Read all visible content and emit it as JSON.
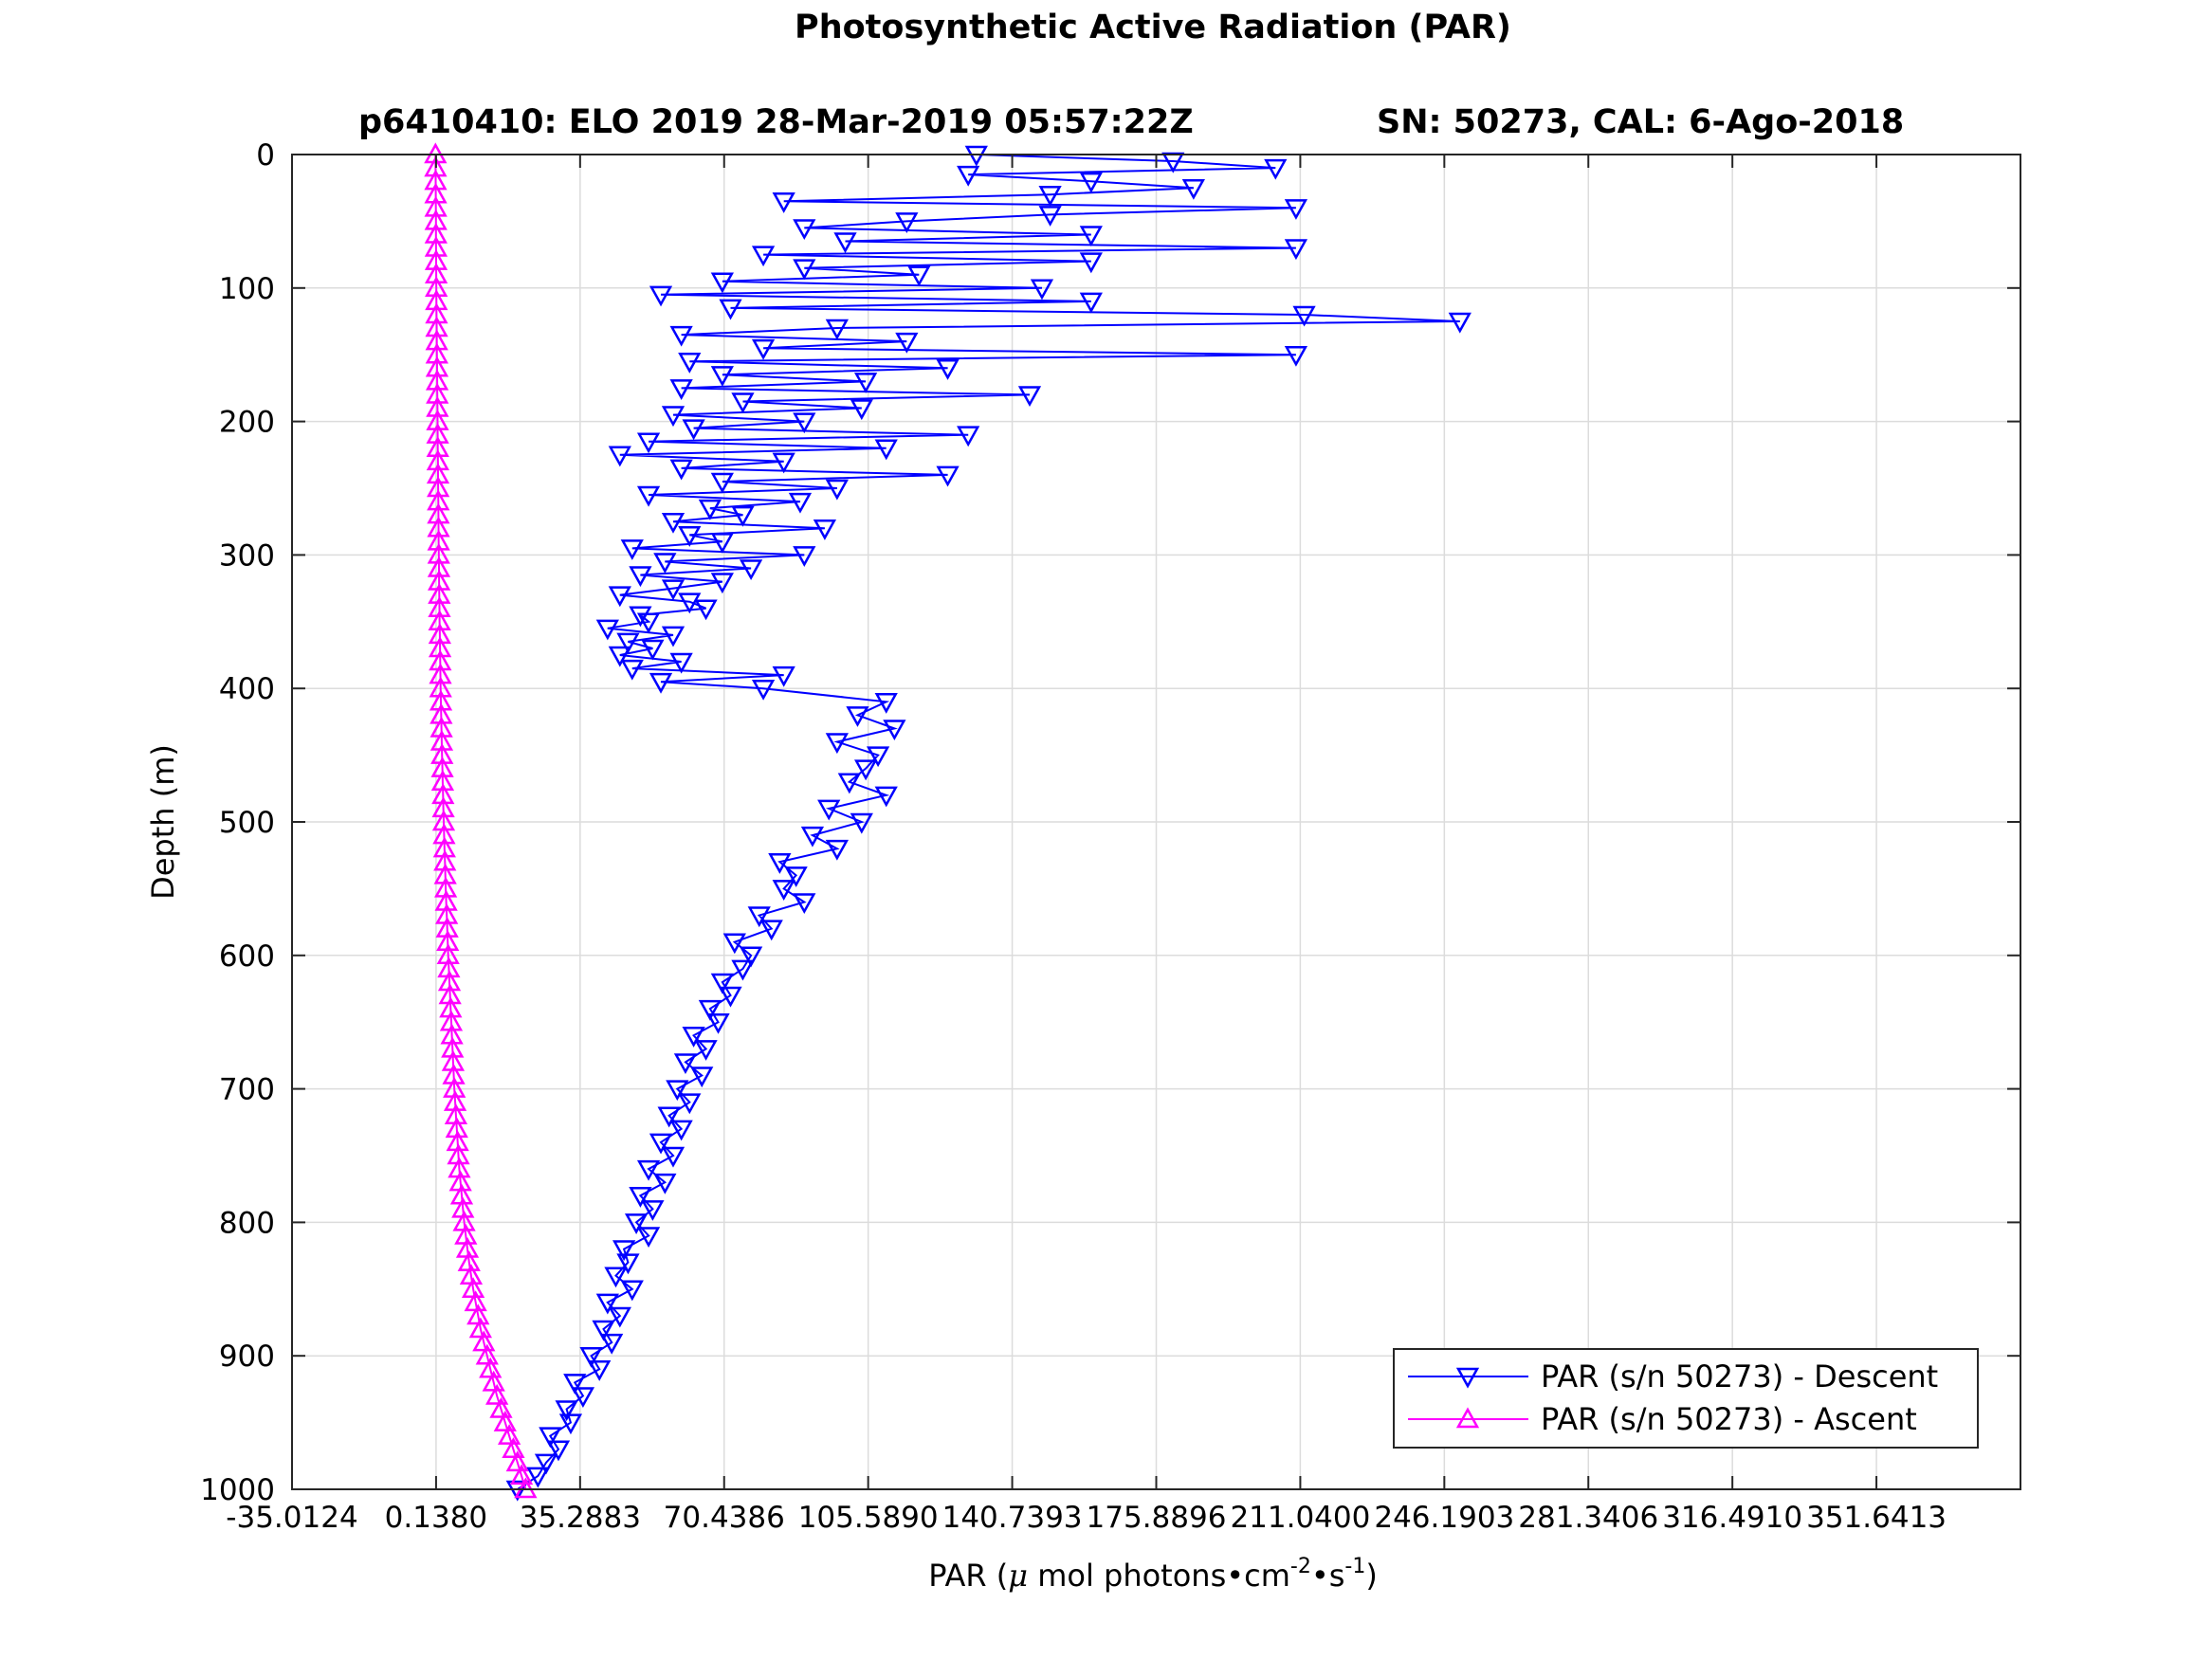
{
  "figure_title": "Photosynthetic Active Radiation (PAR)",
  "subtitle_left": "p6410410: ELO 2019 28-Mar-2019 05:57:22Z",
  "subtitle_right": "SN: 50273, CAL: 6-Ago-2018",
  "chart_data": {
    "type": "line",
    "title": "Photosynthetic Active Radiation (PAR)",
    "xlabel": "PAR (μ mol photons•cm-2•s-1)",
    "xlabel_parts": {
      "pre": "PAR (",
      "mu": "μ",
      "mid": " mol photons•cm",
      "sup1": "-2",
      "mid2": "•s",
      "sup2": "-1",
      "post": ")"
    },
    "ylabel": "Depth (m)",
    "xlim": [
      -35.0124,
      386.7936
    ],
    "ylim": [
      0,
      1000
    ],
    "y_reversed": true,
    "grid": true,
    "legend_position": "bottom-right",
    "x_tick_values": [
      -35.0124,
      0.138,
      35.2883,
      70.4386,
      105.589,
      140.7393,
      175.8896,
      211.04,
      246.1903,
      281.3406,
      316.491,
      351.6413
    ],
    "x_tick_labels": [
      "-35.0124",
      "0.1380",
      "35.2883",
      "70.4386",
      "105.5890",
      "140.7393",
      "175.8896",
      "211.0400",
      "246.1903",
      "281.3406",
      "316.4910",
      "351.6413"
    ],
    "y_ticks": [
      0,
      100,
      200,
      300,
      400,
      500,
      600,
      700,
      800,
      900,
      1000
    ],
    "series": [
      {
        "name": "PAR (s/n 50273) - Descent",
        "color": "#0000ff",
        "marker": "triangle-down",
        "depth": [
          1000,
          990,
          980,
          970,
          960,
          950,
          940,
          930,
          920,
          910,
          900,
          890,
          880,
          870,
          860,
          850,
          840,
          830,
          820,
          810,
          800,
          790,
          780,
          770,
          760,
          750,
          740,
          730,
          720,
          710,
          700,
          690,
          680,
          670,
          660,
          650,
          640,
          630,
          620,
          610,
          600,
          590,
          580,
          570,
          560,
          550,
          540,
          530,
          520,
          510,
          500,
          490,
          480,
          470,
          460,
          450,
          440,
          430,
          420,
          410,
          400,
          395,
          390,
          385,
          380,
          375,
          370,
          365,
          360,
          355,
          350,
          345,
          340,
          335,
          330,
          325,
          320,
          315,
          310,
          305,
          300,
          295,
          290,
          285,
          280,
          275,
          270,
          265,
          260,
          255,
          250,
          245,
          240,
          235,
          230,
          225,
          220,
          215,
          210,
          205,
          200,
          195,
          190,
          185,
          180,
          175,
          170,
          165,
          160,
          155,
          150,
          145,
          140,
          135,
          130,
          125,
          120,
          115,
          110,
          105,
          100,
          95,
          90,
          85,
          80,
          75,
          70,
          65,
          60,
          55,
          50,
          45,
          40,
          35,
          30,
          25,
          20,
          15,
          10,
          5,
          0
        ],
        "par": [
          20,
          25,
          27,
          30,
          28,
          33,
          32,
          36,
          34,
          40,
          38,
          43,
          41,
          45,
          42,
          48,
          44,
          47,
          46,
          52,
          49,
          53,
          50,
          56,
          52,
          58,
          55,
          60,
          57,
          62,
          59,
          65,
          61,
          66,
          63,
          69,
          67,
          72,
          70,
          75,
          77,
          73,
          82,
          79,
          90,
          85,
          88,
          84,
          98,
          92,
          104,
          96,
          110,
          101,
          105,
          108,
          98,
          112,
          103,
          110,
          80,
          55,
          85,
          48,
          60,
          45,
          53,
          47,
          58,
          42,
          52,
          50,
          66,
          62,
          45,
          58,
          70,
          50,
          77,
          56,
          90,
          48,
          70,
          62,
          95,
          58,
          75,
          67,
          89,
          52,
          98,
          70,
          125,
          60,
          85,
          45,
          110,
          52,
          130,
          63,
          90,
          58,
          104,
          75,
          145,
          60,
          105,
          70,
          125,
          62,
          210,
          80,
          115,
          60,
          98,
          250,
          212,
          72,
          160,
          55,
          148,
          70,
          118,
          90,
          160,
          80,
          210,
          100,
          160,
          90,
          115,
          150,
          210,
          85,
          150,
          185,
          160,
          130,
          205,
          180,
          132
        ]
      },
      {
        "name": "PAR (s/n 50273) - Ascent",
        "color": "#ff00ff",
        "marker": "triangle-up",
        "depth": [
          1000,
          990,
          980,
          970,
          960,
          950,
          940,
          930,
          920,
          910,
          900,
          890,
          880,
          870,
          860,
          850,
          840,
          830,
          820,
          810,
          800,
          790,
          780,
          770,
          760,
          750,
          740,
          730,
          720,
          710,
          700,
          690,
          680,
          670,
          660,
          650,
          640,
          630,
          620,
          610,
          600,
          590,
          580,
          570,
          560,
          550,
          540,
          530,
          520,
          510,
          500,
          490,
          480,
          470,
          460,
          450,
          440,
          430,
          420,
          410,
          400,
          390,
          380,
          370,
          360,
          350,
          340,
          330,
          320,
          310,
          300,
          290,
          280,
          270,
          260,
          250,
          240,
          230,
          220,
          210,
          200,
          190,
          180,
          170,
          160,
          150,
          140,
          130,
          120,
          110,
          100,
          90,
          80,
          70,
          60,
          50,
          40,
          30,
          20,
          10,
          0
        ],
        "par": [
          22.0,
          21.0,
          20.0,
          19.0,
          18.0,
          17.0,
          16.0,
          15.0,
          14.2,
          13.4,
          12.6,
          11.8,
          11.0,
          10.4,
          9.8,
          9.2,
          8.7,
          8.2,
          7.8,
          7.4,
          7.0,
          6.7,
          6.4,
          6.1,
          5.8,
          5.6,
          5.4,
          5.2,
          5.0,
          4.8,
          4.6,
          4.45,
          4.3,
          4.15,
          4.0,
          3.85,
          3.7,
          3.55,
          3.4,
          3.25,
          3.1,
          2.98,
          2.86,
          2.74,
          2.62,
          2.5,
          2.4,
          2.3,
          2.2,
          2.1,
          2.0,
          1.92,
          1.84,
          1.76,
          1.68,
          1.6,
          1.53,
          1.46,
          1.39,
          1.32,
          1.25,
          1.2,
          1.15,
          1.1,
          1.05,
          1.0,
          0.96,
          0.92,
          0.88,
          0.84,
          0.8,
          0.77,
          0.74,
          0.71,
          0.68,
          0.65,
          0.62,
          0.59,
          0.56,
          0.53,
          0.5,
          0.47,
          0.44,
          0.41,
          0.38,
          0.35,
          0.32,
          0.29,
          0.26,
          0.23,
          0.2,
          0.18,
          0.16,
          0.14,
          0.12,
          0.1,
          0.08,
          0.06,
          0.04,
          0.02,
          0.0
        ]
      }
    ]
  },
  "colors": {
    "descent": "#0000ff",
    "ascent": "#ff00ff",
    "grid": "#dcdcdc",
    "axes": "#262626"
  }
}
